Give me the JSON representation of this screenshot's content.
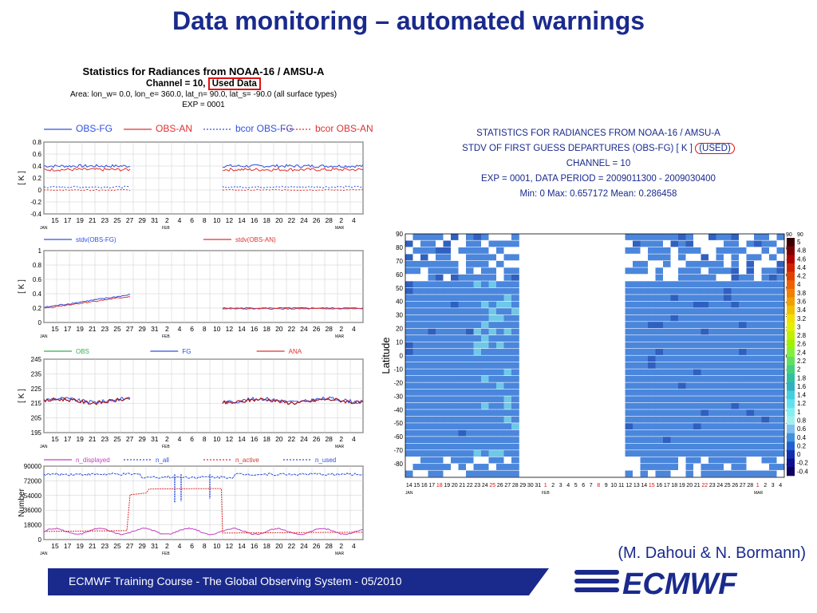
{
  "slide": {
    "title": "Data monitoring – automated warnings",
    "credit": "(M. Dahoui & N. Bormann)",
    "footer": "ECMWF Training Course - The Global Observing System - 05/2010",
    "logo_text": "ECMWF",
    "colors": {
      "title": "#1a2a8c",
      "footer": "#1a2a8c",
      "highlight": "#e01010"
    }
  },
  "left": {
    "title": "Statistics for Radiances from NOAA-16 / AMSU-A",
    "channel_label": "Channel = 10,",
    "used_label": "Used Data",
    "area": "Area: lon_w=  0.0, lon_e= 360.0, lat_n=  90.0, lat_s= -90.0 (all surface types)",
    "exp": "EXP = 0001"
  },
  "right": {
    "line1": "STATISTICS FOR RADIANCES FROM NOAA-16 / AMSU-A",
    "line2": "STDV OF FIRST GUESS DEPARTURES (OBS-FG) [ K ]",
    "used": "(USED)",
    "line3": "CHANNEL = 10",
    "line4": "EXP = 0001, DATA PERIOD = 2009011300 - 2009030400",
    "line5": "Min:   0         Max:   0.657172         Mean:   0.286458"
  },
  "chart_data": [
    {
      "type": "line",
      "legend": [
        "OBS-FG",
        "OBS-AN",
        "bcor OBS-FG",
        "bcor OBS-AN"
      ],
      "colors": [
        "#3050e0",
        "#e03030",
        "#3050e0",
        "#e03030"
      ],
      "ylabel": "[ K ]",
      "ylim": [
        -0.4,
        0.8
      ],
      "yticks": [
        -0.4,
        -0.2,
        0,
        0.2,
        0.4,
        0.6,
        0.8
      ],
      "xticks": [
        "15",
        "17",
        "19",
        "21",
        "23",
        "25",
        "27",
        "29",
        "31",
        "2",
        "4",
        "6",
        "8",
        "10",
        "12",
        "14",
        "16",
        "18",
        "20",
        "22",
        "24",
        "26",
        "28",
        "2",
        "4"
      ],
      "months": [
        "JAN",
        "FEB",
        "MAR"
      ],
      "levels": [
        0.4,
        0.35,
        0.05,
        0.0
      ],
      "gap": [
        27.5,
        42
      ]
    },
    {
      "type": "line",
      "legend": [
        "stdv(OBS-FG)",
        "stdv(OBS-AN)"
      ],
      "colors": [
        "#3050e0",
        "#e03030"
      ],
      "ylabel": "[ K ]",
      "ylim": [
        0,
        1
      ],
      "yticks": [
        0,
        0.2,
        0.4,
        0.6,
        0.8,
        1
      ],
      "gap": [
        27.5,
        42
      ]
    },
    {
      "type": "line",
      "legend": [
        "OBS",
        "FG",
        "ANA"
      ],
      "colors": [
        "#30b050",
        "#3050e0",
        "#e03030"
      ],
      "ylabel": "[ K ]",
      "ylim": [
        195,
        245
      ],
      "yticks": [
        195,
        205,
        215,
        225,
        235,
        245
      ],
      "gap": [
        27.5,
        42
      ]
    },
    {
      "type": "line",
      "legend": [
        "n_displayed",
        "n_all",
        "n_active",
        "n_used"
      ],
      "colors": [
        "#c040c0",
        "#3050e0",
        "#e03030",
        "#3050e0"
      ],
      "ylabel": "Number",
      "ylim": [
        0,
        90000
      ],
      "yticks": [
        0,
        18000,
        36000,
        54000,
        72000,
        90000
      ]
    },
    {
      "type": "heatmap",
      "ylabel": "Latitude",
      "ylim": [
        -90,
        90
      ],
      "yticks": [
        90,
        80,
        70,
        60,
        50,
        40,
        30,
        20,
        10,
        0,
        -10,
        -20,
        -30,
        -40,
        -50,
        -60,
        -70,
        -80
      ],
      "xticks": [
        "14",
        "15",
        "16",
        "17",
        "18",
        "19",
        "20",
        "21",
        "22",
        "23",
        "24",
        "25",
        "26",
        "27",
        "28",
        "29",
        "30",
        "31",
        "1",
        "2",
        "3",
        "4",
        "5",
        "6",
        "7",
        "8",
        "9",
        "10",
        "11",
        "12",
        "13",
        "14",
        "15",
        "16",
        "17",
        "18",
        "19",
        "20",
        "21",
        "22",
        "23",
        "24",
        "25",
        "26",
        "27",
        "28",
        "1",
        "2",
        "3",
        "4"
      ],
      "red_ticks": [
        "18",
        "25",
        "1",
        "8",
        "15",
        "22",
        "1"
      ],
      "months": [
        "JAN",
        "FEB",
        "MAR"
      ],
      "data_gap_days": [
        "29",
        "30",
        "31",
        "1",
        "2",
        "3",
        "4",
        "5",
        "6",
        "7",
        "8",
        "9",
        "10",
        "11"
      ],
      "colorbar_labels": [
        "5",
        "4.8",
        "4.6",
        "4.4",
        "4.2",
        "4",
        "3.8",
        "3.6",
        "3.4",
        "3.2",
        "3",
        "2.8",
        "2.6",
        "2.4",
        "2.2",
        "2",
        "1.8",
        "1.6",
        "1.4",
        "1.2",
        "1",
        "0.8",
        "0.6",
        "0.4",
        "0.2",
        "0",
        "-0.2",
        "-0.4"
      ],
      "colorbar_colors": [
        "#3a0000",
        "#7a0000",
        "#b00000",
        "#d02000",
        "#e04000",
        "#f06000",
        "#f08000",
        "#f0a000",
        "#f0c000",
        "#f0e000",
        "#e0f000",
        "#c0f000",
        "#a0f000",
        "#80f040",
        "#60e060",
        "#40d080",
        "#30c0a0",
        "#30b0c0",
        "#40d0e0",
        "#60e0f0",
        "#80f0f0",
        "#a0f0f0",
        "#80c0f0",
        "#4090e0",
        "#2060d0",
        "#1030b0",
        "#101090",
        "#100060"
      ],
      "cell_color": "#4a86dc",
      "cell_color_high": "#3060c0"
    }
  ]
}
